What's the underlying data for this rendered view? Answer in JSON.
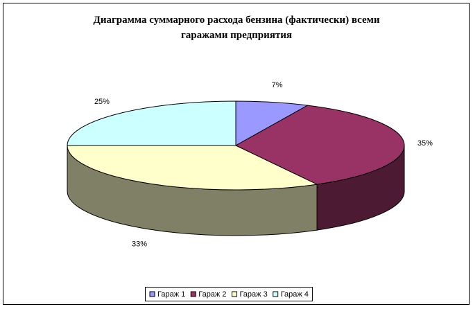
{
  "chart_data": {
    "type": "pie3d",
    "title": [
      "Диаграмма суммарного расхода бензина (фактически) всеми",
      "гаражами предприятия"
    ],
    "categories": [
      "Гараж 1",
      "Гараж 2",
      "Гараж 3",
      "Гараж 4"
    ],
    "values": [
      7,
      35,
      33,
      25
    ],
    "value_labels": [
      "7%",
      "35%",
      "33%",
      "25%"
    ],
    "colors": [
      "#9999ff",
      "#993366",
      "#ffffcc",
      "#ccffff"
    ],
    "legend": "bottom"
  }
}
